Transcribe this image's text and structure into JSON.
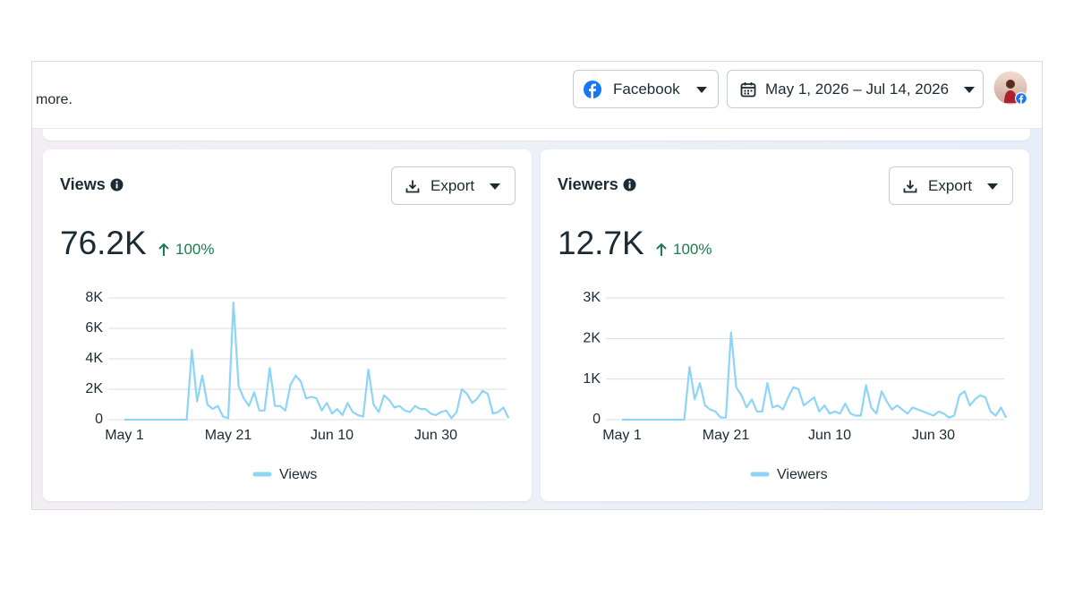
{
  "header": {
    "note": "more.",
    "platform": "Facebook",
    "date_range": "May 1, 2026 – Jul 14, 2026"
  },
  "chart_data": [
    {
      "type": "line",
      "title": "Views",
      "summary": "76.2K",
      "change": "100%",
      "button": "Export",
      "categories": [
        "May 1",
        null,
        null,
        null,
        null,
        null,
        null,
        null,
        null,
        null,
        null,
        null,
        null,
        null,
        null,
        null,
        null,
        null,
        null,
        null,
        "May 21",
        null,
        null,
        null,
        null,
        null,
        null,
        null,
        null,
        null,
        null,
        null,
        null,
        null,
        null,
        null,
        null,
        null,
        null,
        null,
        "Jun 10",
        null,
        null,
        null,
        null,
        null,
        null,
        null,
        null,
        null,
        null,
        null,
        null,
        null,
        null,
        null,
        null,
        null,
        null,
        null,
        "Jun 30",
        null,
        null,
        null,
        null,
        null,
        null,
        null,
        null,
        null,
        null,
        null,
        null,
        null,
        null
      ],
      "series": [
        {
          "name": "Views",
          "color": "#8ed4f7",
          "values": [
            0,
            0,
            0,
            0,
            0,
            0,
            0,
            0,
            0,
            0,
            0,
            0,
            0,
            4600,
            1200,
            2900,
            1000,
            700,
            900,
            200,
            100,
            7700,
            2200,
            1400,
            900,
            1800,
            600,
            600,
            3400,
            900,
            900,
            600,
            2300,
            2900,
            2500,
            1400,
            1500,
            1400,
            600,
            1100,
            400,
            700,
            300,
            1100,
            500,
            300,
            200,
            3300,
            1000,
            500,
            1600,
            1300,
            800,
            900,
            600,
            500,
            900,
            700,
            700,
            400,
            300,
            500,
            600,
            100,
            500,
            2000,
            1700,
            1100,
            1400,
            1900,
            1700,
            400,
            500,
            800,
            100
          ]
        }
      ],
      "ylim": [
        0,
        8000
      ],
      "yticks": [
        0,
        {
          "value": 2000,
          "label": "2K"
        },
        {
          "value": 4000,
          "label": "4K"
        },
        {
          "value": 6000,
          "label": "6K"
        },
        {
          "value": 8000,
          "label": "8K"
        }
      ],
      "grid": true
    },
    {
      "type": "line",
      "title": "Viewers",
      "summary": "12.7K",
      "change": "100%",
      "button": "Export",
      "categories": [
        "May 1",
        null,
        null,
        null,
        null,
        null,
        null,
        null,
        null,
        null,
        null,
        null,
        null,
        null,
        null,
        null,
        null,
        null,
        null,
        null,
        "May 21",
        null,
        null,
        null,
        null,
        null,
        null,
        null,
        null,
        null,
        null,
        null,
        null,
        null,
        null,
        null,
        null,
        null,
        null,
        null,
        "Jun 10",
        null,
        null,
        null,
        null,
        null,
        null,
        null,
        null,
        null,
        null,
        null,
        null,
        null,
        null,
        null,
        null,
        null,
        null,
        null,
        "Jun 30",
        null,
        null,
        null,
        null,
        null,
        null,
        null,
        null,
        null,
        null,
        null,
        null,
        null,
        null
      ],
      "series": [
        {
          "name": "Viewers",
          "color": "#8ed4f7",
          "values": [
            0,
            0,
            0,
            0,
            0,
            0,
            0,
            0,
            0,
            0,
            0,
            0,
            0,
            1300,
            500,
            900,
            350,
            250,
            200,
            50,
            50,
            2150,
            800,
            600,
            300,
            500,
            200,
            200,
            900,
            300,
            350,
            250,
            550,
            800,
            750,
            350,
            450,
            550,
            200,
            350,
            150,
            200,
            150,
            400,
            150,
            100,
            100,
            850,
            300,
            150,
            700,
            450,
            250,
            350,
            250,
            150,
            300,
            250,
            200,
            150,
            100,
            200,
            150,
            50,
            100,
            600,
            700,
            350,
            500,
            600,
            550,
            200,
            100,
            300,
            50
          ]
        }
      ],
      "ylim": [
        0,
        3000
      ],
      "yticks": [
        0,
        {
          "value": 1000,
          "label": "1K"
        },
        {
          "value": 2000,
          "label": "2K"
        },
        {
          "value": 3000,
          "label": "3K"
        }
      ],
      "grid": true
    }
  ]
}
